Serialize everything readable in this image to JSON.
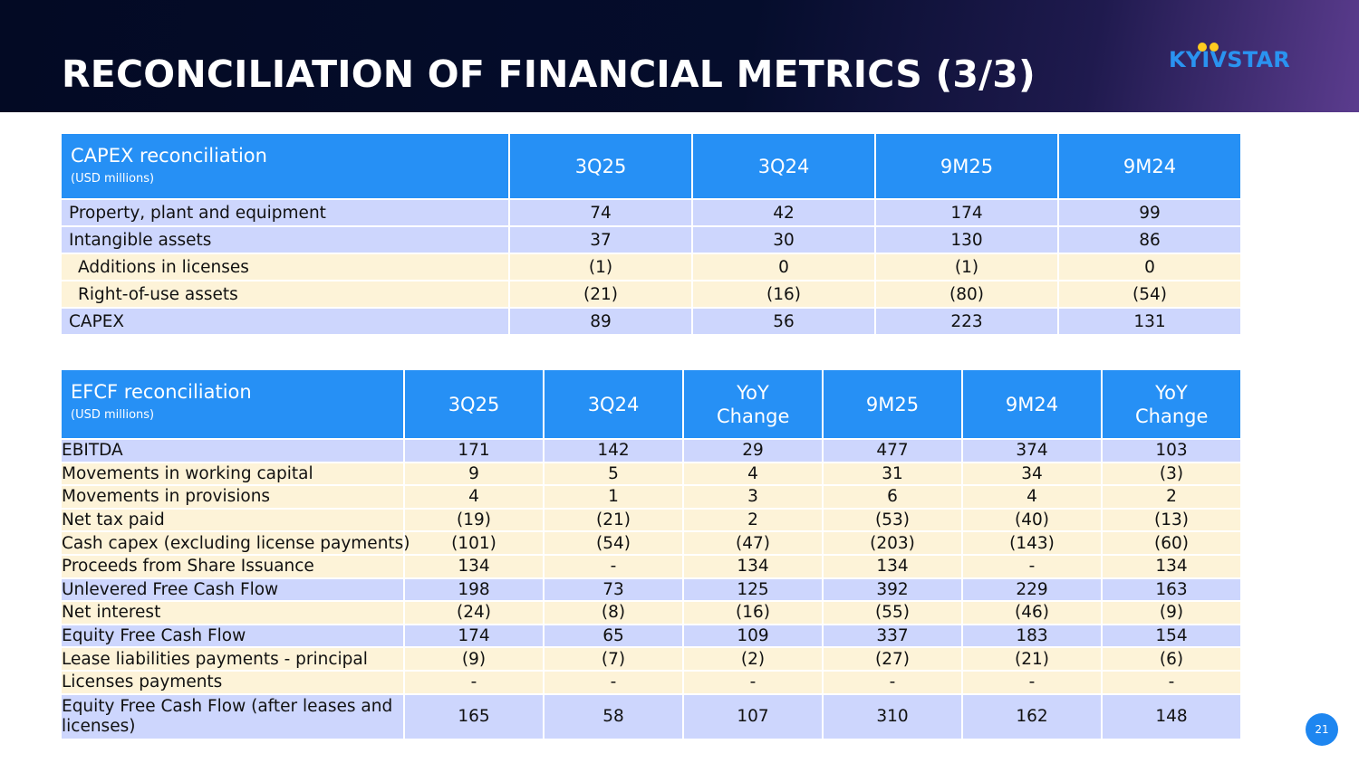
{
  "page": {
    "title": "RECONCILIATION OF FINANCIAL METRICS (3/3)",
    "logo_text": "KYIVSTAR",
    "page_number": "21",
    "colors": {
      "header_bg": "#030a24",
      "table_header": "#2690f5",
      "row_blue": "#cdd6fd",
      "row_beige": "#fdf3d8",
      "logo_blue": "#2a93f0",
      "logo_yellow": "#ffcc1f"
    }
  },
  "capex": {
    "title": "CAPEX reconciliation",
    "unit": "(USD millions)",
    "columns": [
      "3Q25",
      "3Q24",
      "9M25",
      "9M24"
    ],
    "rows": [
      {
        "label": "Property, plant and equipment",
        "values": [
          "74",
          "42",
          "174",
          "99"
        ]
      },
      {
        "label": "Intangible assets",
        "values": [
          "37",
          "30",
          "130",
          "86"
        ]
      },
      {
        "label": "Additions in licenses",
        "values": [
          "(1)",
          "0",
          "(1)",
          "0"
        ]
      },
      {
        "label": "Right-of-use assets",
        "values": [
          "(21)",
          "(16)",
          "(80)",
          "(54)"
        ]
      },
      {
        "label": "CAPEX",
        "values": [
          "89",
          "56",
          "223",
          "131"
        ]
      }
    ]
  },
  "efcf": {
    "title": "EFCF reconciliation",
    "unit": "(USD millions)",
    "columns": [
      "3Q25",
      "3Q24",
      "YoY Change",
      "9M25",
      "9M24",
      "YoY Change"
    ],
    "rows": [
      {
        "label": "EBITDA",
        "values": [
          "171",
          "142",
          "29",
          "477",
          "374",
          "103"
        ]
      },
      {
        "label": "Movements in working capital",
        "values": [
          "9",
          "5",
          "4",
          "31",
          "34",
          "(3)"
        ]
      },
      {
        "label": "Movements in provisions",
        "values": [
          "4",
          "1",
          "3",
          "6",
          "4",
          "2"
        ]
      },
      {
        "label": "Net tax paid",
        "values": [
          "(19)",
          "(21)",
          "2",
          "(53)",
          "(40)",
          "(13)"
        ]
      },
      {
        "label": "Cash capex (excluding license payments)",
        "values": [
          "(101)",
          "(54)",
          "(47)",
          "(203)",
          "(143)",
          "(60)"
        ]
      },
      {
        "label": "Proceeds from Share Issuance",
        "values": [
          "134",
          "-",
          "134",
          "134",
          "-",
          "134"
        ]
      },
      {
        "label": "Unlevered Free Cash Flow",
        "values": [
          "198",
          "73",
          "125",
          "392",
          "229",
          "163"
        ]
      },
      {
        "label": "Net interest",
        "values": [
          "(24)",
          "(8)",
          "(16)",
          "(55)",
          "(46)",
          "(9)"
        ]
      },
      {
        "label": "Equity Free Cash Flow",
        "values": [
          "174",
          "65",
          "109",
          "337",
          "183",
          "154"
        ]
      },
      {
        "label": "Lease liabilities payments - principal",
        "values": [
          "(9)",
          "(7)",
          "(2)",
          "(27)",
          "(21)",
          "(6)"
        ]
      },
      {
        "label": "Licenses payments",
        "values": [
          "-",
          "-",
          "-",
          "-",
          "-",
          "-"
        ]
      },
      {
        "label": "Equity Free Cash Flow (after leases and licenses)",
        "values": [
          "165",
          "58",
          "107",
          "310",
          "162",
          "148"
        ]
      }
    ]
  }
}
